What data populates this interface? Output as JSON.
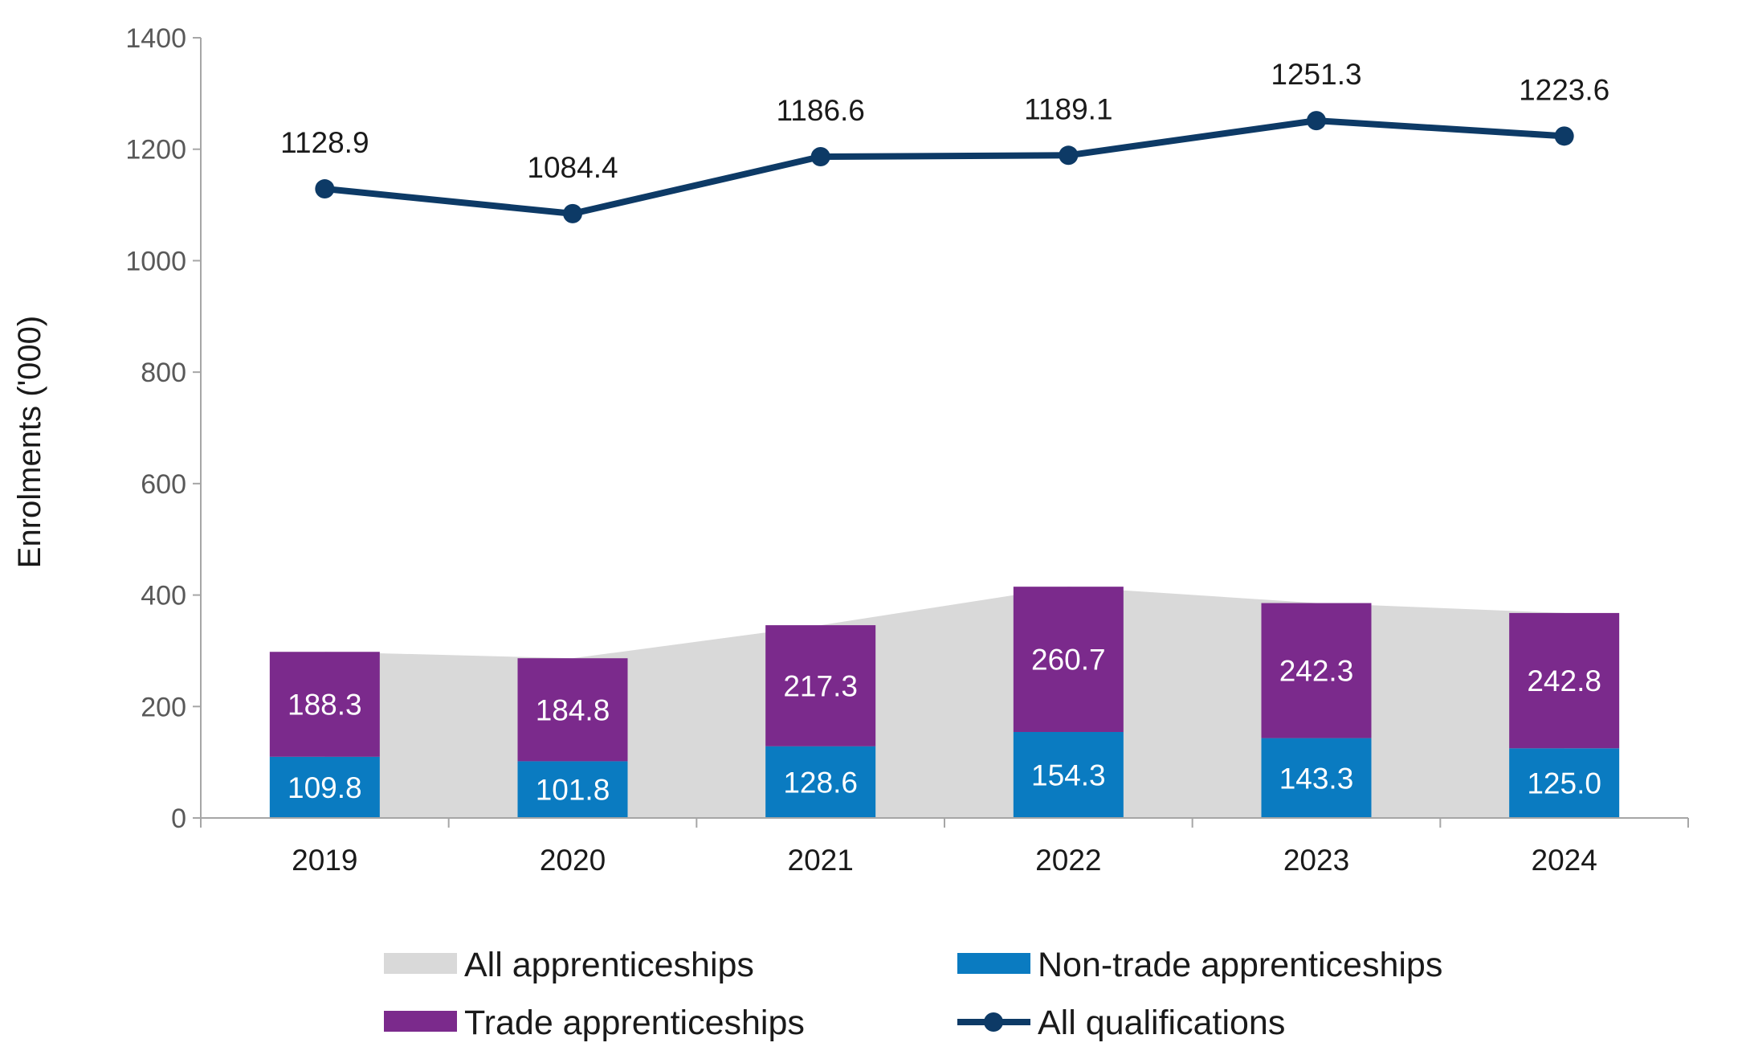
{
  "chart_data": {
    "type": "bar",
    "categories": [
      "2019",
      "2020",
      "2021",
      "2022",
      "2023",
      "2024"
    ],
    "ylabel": "Enrolments ('000)",
    "ylim": [
      0,
      1400
    ],
    "yticks": [
      "0",
      "200",
      "400",
      "600",
      "800",
      "1000",
      "1200",
      "1400"
    ],
    "series": [
      {
        "name": "All apprenticeships",
        "kind": "area",
        "color": "#d9d9d9",
        "values": [
          298.1,
          286.6,
          345.9,
          415.0,
          385.6,
          367.8
        ]
      },
      {
        "name": "Non-trade apprenticeships",
        "kind": "stacked-bar",
        "color": "#0a7bc1",
        "values": [
          109.8,
          101.8,
          128.6,
          154.3,
          143.3,
          125.0
        ],
        "labels": [
          "109.8",
          "101.8",
          "128.6",
          "154.3",
          "143.3",
          "125.0"
        ]
      },
      {
        "name": "Trade apprenticeships",
        "kind": "stacked-bar",
        "color": "#7b2a8c",
        "values": [
          188.3,
          184.8,
          217.3,
          260.7,
          242.3,
          242.8
        ],
        "labels": [
          "188.3",
          "184.8",
          "217.3",
          "260.7",
          "242.3",
          "242.8"
        ]
      },
      {
        "name": "All qualifications",
        "kind": "line",
        "color": "#0d3a66",
        "values": [
          1128.9,
          1084.4,
          1186.6,
          1189.1,
          1251.3,
          1223.6
        ],
        "labels": [
          "1128.9",
          "1084.4",
          "1186.6",
          "1189.1",
          "1251.3",
          "1223.6"
        ]
      }
    ],
    "grid": false,
    "legend_position": "bottom"
  }
}
